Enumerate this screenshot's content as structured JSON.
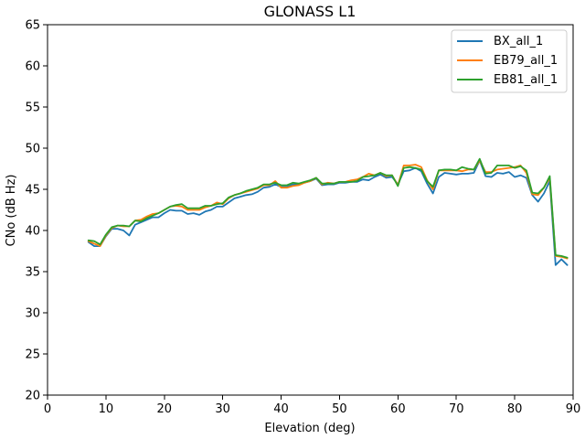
{
  "chart_data": {
    "type": "line",
    "title": "GLONASS L1",
    "xlabel": "Elevation (deg)",
    "ylabel": "CNo (dB Hz)",
    "xlim": [
      0,
      90
    ],
    "ylim": [
      20,
      65
    ],
    "x_ticks": [
      "0",
      "10",
      "20",
      "30",
      "40",
      "50",
      "60",
      "70",
      "80",
      "90"
    ],
    "y_ticks": [
      "20",
      "25",
      "30",
      "35",
      "40",
      "45",
      "50",
      "55",
      "60",
      "65"
    ],
    "grid": false,
    "legend_position": "top-right",
    "x": [
      7,
      8,
      9,
      10,
      11,
      12,
      13,
      14,
      15,
      16,
      17,
      18,
      19,
      20,
      21,
      22,
      23,
      24,
      25,
      26,
      27,
      28,
      29,
      30,
      31,
      32,
      33,
      34,
      35,
      36,
      37,
      38,
      39,
      40,
      41,
      42,
      43,
      44,
      45,
      46,
      47,
      48,
      49,
      50,
      51,
      52,
      53,
      54,
      55,
      56,
      57,
      58,
      59,
      60,
      61,
      62,
      63,
      64,
      65,
      66,
      67,
      68,
      69,
      70,
      71,
      72,
      73,
      74,
      75,
      76,
      77,
      78,
      79,
      80,
      81,
      82,
      83,
      84,
      85,
      86,
      87,
      88,
      89
    ],
    "series": [
      {
        "name": "BX_all_1",
        "color": "#1f77b4",
        "values": [
          38.6,
          38.1,
          38.1,
          39.3,
          40.2,
          40.2,
          40.0,
          39.4,
          40.7,
          41.0,
          41.3,
          41.6,
          41.6,
          42.1,
          42.5,
          42.4,
          42.4,
          42.0,
          42.1,
          41.9,
          42.3,
          42.5,
          42.9,
          42.9,
          43.4,
          43.9,
          44.1,
          44.3,
          44.4,
          44.7,
          45.2,
          45.3,
          45.6,
          45.3,
          45.3,
          45.6,
          45.6,
          45.8,
          46.0,
          46.3,
          45.5,
          45.6,
          45.6,
          45.8,
          45.8,
          45.9,
          45.9,
          46.2,
          46.1,
          46.5,
          46.8,
          46.4,
          46.5,
          45.6,
          47.2,
          47.3,
          47.6,
          47.2,
          45.7,
          44.5,
          46.5,
          47.0,
          46.9,
          46.8,
          46.9,
          46.9,
          47.0,
          48.5,
          46.6,
          46.5,
          47.0,
          46.9,
          47.1,
          46.5,
          46.7,
          46.4,
          44.3,
          43.5,
          44.5,
          46.0,
          35.8,
          36.5,
          35.8
        ]
      },
      {
        "name": "EB79_all_1",
        "color": "#ff7f0e",
        "values": [
          38.7,
          38.4,
          38.1,
          39.4,
          40.3,
          40.6,
          40.5,
          40.5,
          41.2,
          41.3,
          41.7,
          42.0,
          42.1,
          42.5,
          42.9,
          43.0,
          42.9,
          42.5,
          42.5,
          42.5,
          42.8,
          43.0,
          43.4,
          43.2,
          43.9,
          44.3,
          44.5,
          44.7,
          44.9,
          45.1,
          45.5,
          45.5,
          46.0,
          45.2,
          45.2,
          45.4,
          45.5,
          45.8,
          46.0,
          46.4,
          45.6,
          45.8,
          45.7,
          45.9,
          45.9,
          46.1,
          46.2,
          46.5,
          46.9,
          46.7,
          47.0,
          46.6,
          46.7,
          45.5,
          47.9,
          47.9,
          48.0,
          47.7,
          46.1,
          45.0,
          47.3,
          47.3,
          47.3,
          47.3,
          47.2,
          47.4,
          47.4,
          48.5,
          47.1,
          47.1,
          47.4,
          47.5,
          47.6,
          47.7,
          47.9,
          47.0,
          44.4,
          44.3,
          45.2,
          46.4,
          36.9,
          36.8,
          36.6
        ]
      },
      {
        "name": "EB81_all_1",
        "color": "#2ca02c",
        "values": [
          38.8,
          38.7,
          38.3,
          39.5,
          40.4,
          40.6,
          40.6,
          40.5,
          41.2,
          41.1,
          41.5,
          41.8,
          42.1,
          42.5,
          42.9,
          43.1,
          43.2,
          42.7,
          42.7,
          42.7,
          43.0,
          43.0,
          43.2,
          43.3,
          44.0,
          44.3,
          44.5,
          44.8,
          45.0,
          45.2,
          45.6,
          45.6,
          45.8,
          45.5,
          45.5,
          45.8,
          45.7,
          45.9,
          46.1,
          46.4,
          45.7,
          45.7,
          45.7,
          45.9,
          45.9,
          45.9,
          46.0,
          46.5,
          46.6,
          46.7,
          47.0,
          46.7,
          46.7,
          45.4,
          47.6,
          47.7,
          47.6,
          47.4,
          46.0,
          45.3,
          47.3,
          47.4,
          47.4,
          47.3,
          47.7,
          47.5,
          47.4,
          48.7,
          46.9,
          47.0,
          47.9,
          47.9,
          47.9,
          47.6,
          47.8,
          47.3,
          44.6,
          44.5,
          45.2,
          46.6,
          37.0,
          36.9,
          36.7
        ]
      }
    ]
  }
}
